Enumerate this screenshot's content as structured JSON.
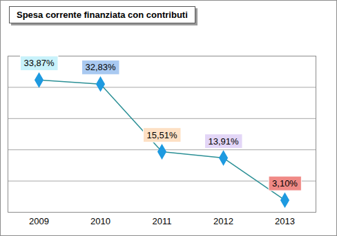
{
  "chart_data": {
    "type": "line",
    "title": "Spesa corrente finanziata con contributi",
    "categories": [
      "2009",
      "2010",
      "2011",
      "2012",
      "2013"
    ],
    "values": [
      33.87,
      32.83,
      15.51,
      13.91,
      3.1
    ],
    "value_labels": [
      "33,87%",
      "32,83%",
      "15,51%",
      "13,91%",
      "3,10%"
    ],
    "color": "#2a8f95",
    "colors": [
      "#c8f2fb",
      "#a9c9f1",
      "#fde0c4",
      "#e3d6f7",
      "#f08a86"
    ],
    "marker": "diamond",
    "ylim": [
      0,
      40
    ],
    "yticks": [
      0,
      8,
      16,
      24,
      32,
      40
    ],
    "grid": true,
    "tick_labels": "x",
    "data_labels": true
  }
}
